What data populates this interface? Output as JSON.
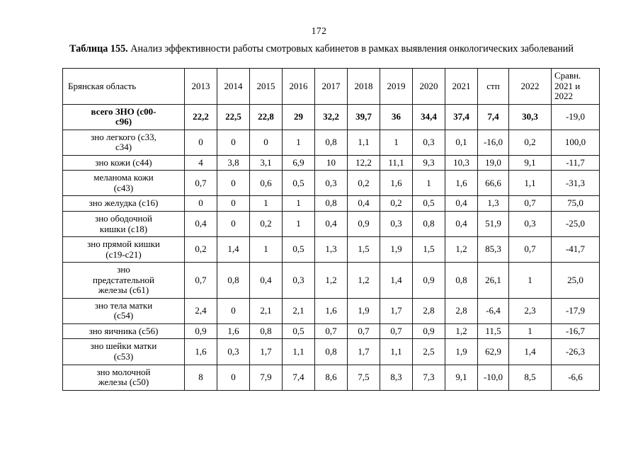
{
  "page_number": "172",
  "caption": {
    "label": "Таблица 155.",
    "text": "Анализ эффективности работы смотровых кабинетов в рамках выявления онкологических заболеваний"
  },
  "table": {
    "region_header": "Брянская область",
    "columns": [
      "2013",
      "2014",
      "2015",
      "2016",
      "2017",
      "2018",
      "2019",
      "2020",
      "2021",
      "стп",
      "2022",
      "Сравн.\n2021 и\n2022"
    ],
    "rows": [
      {
        "label": "всего ЗНО (с00-\nс96)",
        "bold": true,
        "values": [
          "22,2",
          "22,5",
          "22,8",
          "29",
          "32,2",
          "39,7",
          "36",
          "34,4",
          "37,4",
          "7,4",
          "30,3",
          "-19,0"
        ]
      },
      {
        "label": "зно легкого (с33,\nс34)",
        "values": [
          "0",
          "0",
          "0",
          "1",
          "0,8",
          "1,1",
          "1",
          "0,3",
          "0,1",
          "-16,0",
          "0,2",
          "100,0"
        ]
      },
      {
        "label": "зно кожи (с44)",
        "values": [
          "4",
          "3,8",
          "3,1",
          "6,9",
          "10",
          "12,2",
          "11,1",
          "9,3",
          "10,3",
          "19,0",
          "9,1",
          "-11,7"
        ]
      },
      {
        "label": "меланома кожи\n(с43)",
        "values": [
          "0,7",
          "0",
          "0,6",
          "0,5",
          "0,3",
          "0,2",
          "1,6",
          "1",
          "1,6",
          "66,6",
          "1,1",
          "-31,3"
        ]
      },
      {
        "label": "зно желудка (с16)",
        "values": [
          "0",
          "0",
          "1",
          "1",
          "0,8",
          "0,4",
          "0,2",
          "0,5",
          "0,4",
          "1,3",
          "0,7",
          "75,0"
        ]
      },
      {
        "label": "зно ободочной\nкишки (с18)",
        "values": [
          "0,4",
          "0",
          "0,2",
          "1",
          "0,4",
          "0,9",
          "0,3",
          "0,8",
          "0,4",
          "51,9",
          "0,3",
          "-25,0"
        ]
      },
      {
        "label": "зно прямой кишки\n(с19-с21)",
        "values": [
          "0,2",
          "1,4",
          "1",
          "0,5",
          "1,3",
          "1,5",
          "1,9",
          "1,5",
          "1,2",
          "85,3",
          "0,7",
          "-41,7"
        ]
      },
      {
        "label": "зно\nпредстательной\nжелезы (с61)",
        "values": [
          "0,7",
          "0,8",
          "0,4",
          "0,3",
          "1,2",
          "1,2",
          "1,4",
          "0,9",
          "0,8",
          "26,1",
          "1",
          "25,0"
        ]
      },
      {
        "label": "зно тела матки\n(с54)",
        "values": [
          "2,4",
          "0",
          "2,1",
          "2,1",
          "1,6",
          "1,9",
          "1,7",
          "2,8",
          "2,8",
          "-6,4",
          "2,3",
          "-17,9"
        ]
      },
      {
        "label": "зно яичника (с56)",
        "values": [
          "0,9",
          "1,6",
          "0,8",
          "0,5",
          "0,7",
          "0,7",
          "0,7",
          "0,9",
          "1,2",
          "11,5",
          "1",
          "-16,7"
        ]
      },
      {
        "label": "зно шейки матки\n(с53)",
        "values": [
          "1,6",
          "0,3",
          "1,7",
          "1,1",
          "0,8",
          "1,7",
          "1,1",
          "2,5",
          "1,9",
          "62,9",
          "1,4",
          "-26,3"
        ]
      },
      {
        "label": "зно молочной\nжелезы (с50)",
        "values": [
          "8",
          "0",
          "7,9",
          "7,4",
          "8,6",
          "7,5",
          "8,3",
          "7,3",
          "9,1",
          "-10,0",
          "8,5",
          "-6,6"
        ]
      }
    ]
  }
}
